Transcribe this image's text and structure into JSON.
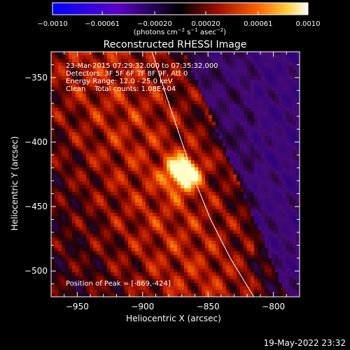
{
  "chart_data": {
    "type": "heatmap",
    "title": "Reconstructed RHESSI Image",
    "xlabel": "Heliocentric X (arcsec)",
    "ylabel": "Heliocentric Y (arcsec)",
    "xlim": [
      -970,
      -780
    ],
    "ylim": [
      -520,
      -330
    ],
    "x_ticks": [
      -950,
      -900,
      -850,
      -800
    ],
    "y_ticks": [
      -350,
      -400,
      -450,
      -500
    ],
    "colorbar": {
      "range": [
        -0.001,
        0.001
      ],
      "tick_values": [
        -0.001,
        -0.00061,
        -0.0002,
        0.0002,
        0.00061,
        0.001
      ],
      "tick_labels": [
        "−0.0010",
        "−0.00061",
        "−0.00020",
        "0.00020",
        "0.00061",
        "0.0010"
      ],
      "unit_parts": [
        "(photons cm",
        "−2",
        " s",
        "−1",
        " asec",
        "−2",
        ")"
      ]
    },
    "annotations": [
      "23-Mar-2015 07:29:32.000 to 07:35:32.000",
      "Detectors: 3F 5F 6F 7F 8F 9F, Att 0",
      "Energy Range: 12.0 - 25.0 keV",
      "Clean    Total counts: 1.08E+04"
    ],
    "peak": {
      "x": -869,
      "y": -424,
      "label": "Position of Peak = [-869,-424]"
    },
    "limb_curve": [
      [
        -893,
        -330
      ],
      [
        -880,
        -370
      ],
      [
        -870,
        -400
      ],
      [
        -860,
        -430
      ],
      [
        -848,
        -460
      ],
      [
        -833,
        -490
      ],
      [
        -815,
        -520
      ]
    ],
    "timestamp": "19-May-2022 23:32"
  }
}
